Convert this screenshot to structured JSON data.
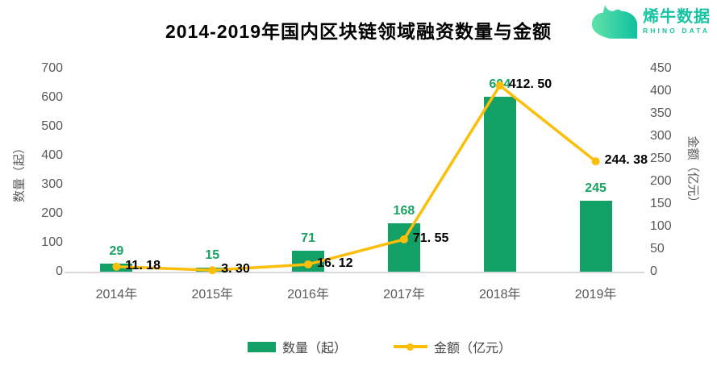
{
  "header": {
    "title": "2014-2019年国内区块链领域融资数量与金额",
    "logo": {
      "cn": "烯牛数据",
      "en": "RHINO DATA"
    }
  },
  "colors": {
    "bar": "#12a067",
    "bar_label": "#18a264",
    "line": "#fcbe08",
    "line_label": "#000000",
    "axis_text": "#595959",
    "baseline": "#d9d9d9",
    "logo": "#17c3a3",
    "logo_gradient_start": "#63e2a9",
    "logo_gradient_end": "#0fc0a0"
  },
  "chart_data": {
    "type": "bar+line combo",
    "title": "2014-2019年国内区块链领域融资数量与金额",
    "categories": [
      "2014年",
      "2015年",
      "2016年",
      "2017年",
      "2018年",
      "2019年"
    ],
    "series": [
      {
        "name": "数量（起）",
        "type": "bar",
        "axis": "left",
        "color": "#12a067",
        "values": [
          29,
          15,
          71,
          168,
          604,
          245
        ],
        "labels": [
          "29",
          "15",
          "71",
          "168",
          "604",
          "245"
        ]
      },
      {
        "name": "金额（亿元）",
        "type": "line",
        "axis": "right",
        "color": "#fcbe08",
        "values": [
          11.18,
          3.3,
          16.12,
          71.55,
          412.5,
          244.38
        ],
        "labels": [
          "11. 18",
          "3. 30",
          "16. 12",
          "71. 55",
          "412. 50",
          "244. 38"
        ]
      }
    ],
    "left_axis": {
      "title": "数量（起）",
      "min": 0,
      "max": 700,
      "ticks": [
        0,
        100,
        200,
        300,
        400,
        500,
        600,
        700
      ]
    },
    "right_axis": {
      "title": "金额（亿元）",
      "min": 0,
      "max": 450,
      "ticks": [
        0,
        50,
        100,
        150,
        200,
        250,
        300,
        350,
        400,
        450
      ]
    },
    "grid": false,
    "legend_position": "bottom"
  },
  "legend": [
    {
      "label": "数量（起）",
      "swatch": "bar"
    },
    {
      "label": "金额（亿元）",
      "swatch": "line"
    }
  ]
}
